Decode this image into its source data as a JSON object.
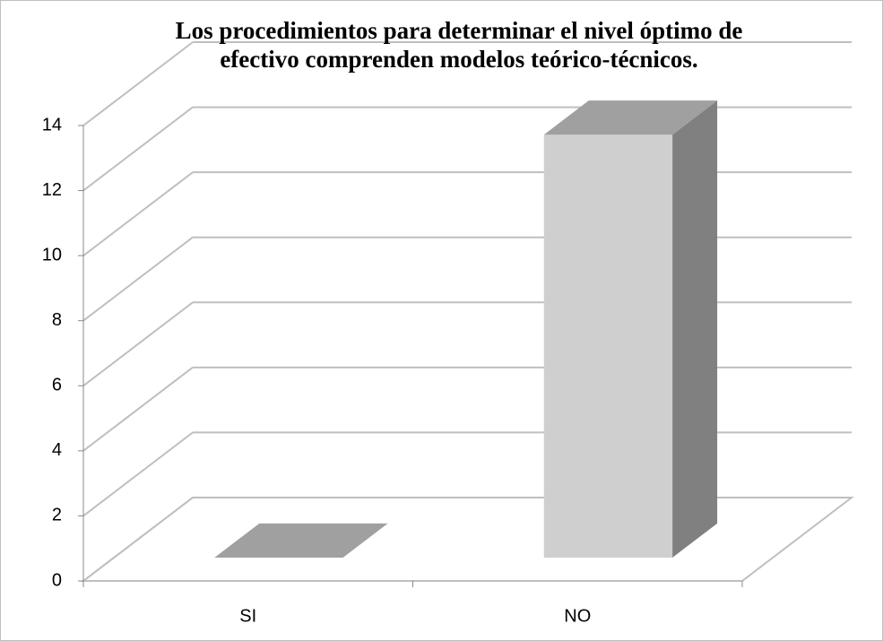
{
  "chart_data": {
    "type": "bar3d",
    "title": "Los procedimientos para determinar el nivel óptimo de efectivo comprenden modelos teórico-técnicos.",
    "categories": [
      "SI",
      "NO"
    ],
    "values": [
      0,
      13
    ],
    "colors": {
      "front": "#d0cfd0",
      "top": "#a0a0a0",
      "side": "#808080"
    },
    "ylim": [
      0,
      14
    ],
    "yticks": [
      0,
      2,
      4,
      6,
      8,
      10,
      12,
      14
    ],
    "grid": true
  }
}
